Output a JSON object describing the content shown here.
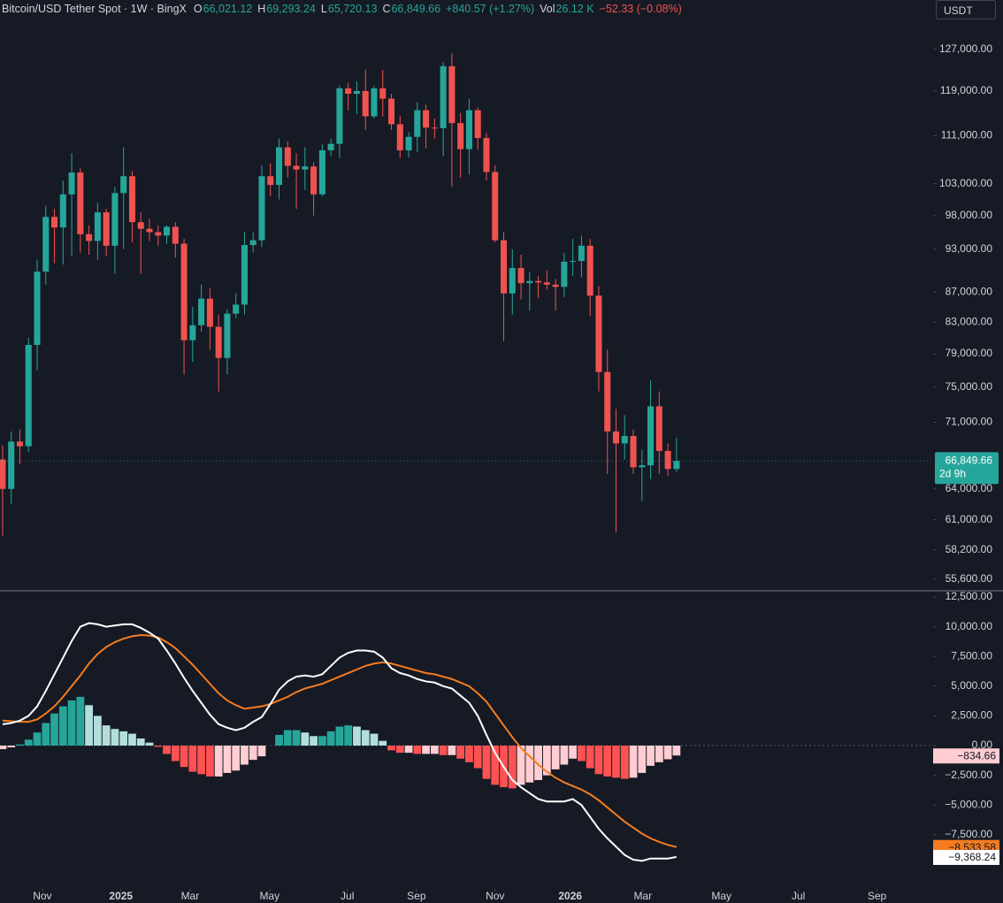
{
  "header": {
    "symbol": "Bitcoin/USD Tether Spot · 1W · BingX",
    "o_key": "O",
    "o": "66,021.12",
    "h_key": "H",
    "h": "69,293.24",
    "l_key": "L",
    "l": "65,720.13",
    "c_key": "C",
    "c": "66,849.66",
    "change": "+840.57 (+1.27%)",
    "vol_key": "Vol",
    "vol": "26.12 K",
    "vol_change": "−52.33 (−0.08%)"
  },
  "currency": "USDT",
  "chart_data": [
    {
      "type": "candlestick",
      "log_scale": true,
      "ylim": [
        54600,
        132500
      ],
      "yticks": [
        {
          "value": 127000,
          "label": "127,000.00"
        },
        {
          "value": 119000,
          "label": "119,000.00"
        },
        {
          "value": 111000,
          "label": "111,000.00"
        },
        {
          "value": 103000,
          "label": "103,000.00"
        },
        {
          "value": 98000,
          "label": "98,000.00"
        },
        {
          "value": 93000,
          "label": "93,000.00"
        },
        {
          "value": 87000,
          "label": "87,000.00"
        },
        {
          "value": 83000,
          "label": "83,000.00"
        },
        {
          "value": 79000,
          "label": "79,000.00"
        },
        {
          "value": 75000,
          "label": "75,000.00"
        },
        {
          "value": 71000,
          "label": "71,000.00"
        },
        {
          "value": 64000,
          "label": "64,000.00"
        },
        {
          "value": 61000,
          "label": "61,000.00"
        },
        {
          "value": 58200,
          "label": "58,200.00"
        },
        {
          "value": 55600,
          "label": "55,600.00"
        }
      ],
      "open": [
        67000,
        64000,
        68900,
        68400,
        80100,
        89800,
        97800,
        96200,
        101300,
        104800,
        95200,
        94200,
        98500,
        93500,
        101500,
        104200,
        97000,
        96000,
        95500,
        95000,
        96300,
        93800,
        80700,
        82600,
        86100,
        82400,
        78500,
        84100,
        85300,
        93600,
        94300,
        104200,
        102800,
        109000,
        105900,
        105300,
        105800,
        101300,
        108500,
        109600,
        119500,
        118500,
        119000,
        114400,
        119500,
        117600,
        113000,
        108500,
        110800,
        115500,
        112400,
        112300,
        123700,
        113200,
        108700,
        115500,
        110600,
        104900,
        94300,
        86800,
        90300,
        88200,
        88500,
        88300,
        88000,
        87700,
        91200,
        91300,
        93500,
        86500,
        76800,
        70000,
        68700,
        69500,
        66200,
        66400,
        72800,
        67900,
        66021.12
      ],
      "high": [
        68500,
        70000,
        70200,
        81000,
        91500,
        99500,
        99000,
        103500,
        108000,
        105500,
        96500,
        100000,
        99000,
        102500,
        109000,
        105000,
        98500,
        97500,
        96500,
        96500,
        97000,
        94500,
        85000,
        88000,
        87500,
        84000,
        84700,
        86800,
        95500,
        95500,
        106000,
        106300,
        110500,
        110000,
        108000,
        109000,
        106500,
        109500,
        110500,
        120000,
        120500,
        120800,
        123000,
        120000,
        123000,
        118500,
        114500,
        111600,
        117000,
        116500,
        114000,
        124500,
        126200,
        115000,
        117500,
        116000,
        111500,
        106000,
        95500,
        93000,
        92200,
        89800,
        89200,
        90000,
        88800,
        92500,
        94500,
        95000,
        94500,
        87800,
        79500,
        72500,
        71800,
        70200,
        68000,
        75800,
        74500,
        68700,
        69293.24
      ],
      "low": [
        59500,
        62500,
        66500,
        67800,
        77000,
        88000,
        91000,
        90800,
        92000,
        92500,
        92200,
        91500,
        92000,
        89500,
        93000,
        94000,
        89500,
        94200,
        93500,
        93800,
        91800,
        76500,
        78000,
        81800,
        79500,
        74500,
        76500,
        83500,
        84000,
        92500,
        93300,
        101000,
        100500,
        104000,
        99000,
        102000,
        98000,
        101000,
        107500,
        107200,
        115500,
        114800,
        112000,
        114000,
        114400,
        112000,
        107200,
        107300,
        108200,
        108800,
        110500,
        107500,
        102500,
        104000,
        104500,
        108600,
        103500,
        94000,
        80600,
        84000,
        86000,
        84500,
        86200,
        87300,
        84500,
        86300,
        89200,
        89000,
        83800,
        74500,
        65500,
        59800,
        67000,
        65500,
        62800,
        65000,
        65500,
        65300,
        65720.13
      ],
      "close": [
        64000,
        68900,
        68400,
        80100,
        89800,
        97800,
        96200,
        101300,
        104800,
        95200,
        94200,
        98500,
        93500,
        101500,
        104200,
        97000,
        96000,
        95500,
        95000,
        96300,
        93800,
        80700,
        82600,
        86100,
        82400,
        78500,
        84100,
        85300,
        93600,
        94300,
        104200,
        102800,
        109000,
        105900,
        105300,
        105800,
        101300,
        108500,
        109600,
        119500,
        118500,
        119000,
        114400,
        119500,
        117600,
        113000,
        108500,
        110800,
        115500,
        112400,
        112300,
        123700,
        113200,
        108700,
        115500,
        110600,
        104900,
        94300,
        86800,
        90300,
        88200,
        88500,
        88300,
        88000,
        87700,
        91200,
        91300,
        93500,
        86500,
        76800,
        70000,
        68700,
        69500,
        66200,
        66400,
        72800,
        67900,
        66021.12,
        66849.66
      ],
      "up_color": "#26a69a",
      "down_color": "#ef5350",
      "last_label": "66,849.66",
      "countdown": "2d 9h"
    },
    {
      "type": "macd",
      "ylim": [
        -12050,
        13020
      ],
      "xlim": [
        -0.3,
        107.7
      ],
      "xticks": [
        {
          "value": 4.6,
          "label": "Nov"
        },
        {
          "value": 13.7,
          "label": "2025"
        },
        {
          "value": 21.7,
          "label": "Mar"
        },
        {
          "value": 30.9,
          "label": "May"
        },
        {
          "value": 39.9,
          "label": "Jul"
        },
        {
          "value": 47.9,
          "label": "Sep"
        },
        {
          "value": 57,
          "label": "Nov"
        },
        {
          "value": 65.7,
          "label": "2026"
        },
        {
          "value": 74.1,
          "label": "Mar"
        },
        {
          "value": 83.2,
          "label": "May"
        },
        {
          "value": 92.1,
          "label": "Jul"
        },
        {
          "value": 101.2,
          "label": "Sep"
        }
      ],
      "yticks": [
        {
          "value": 12500,
          "label": "12,500.00"
        },
        {
          "value": 10000,
          "label": "10,000.00"
        },
        {
          "value": 7500,
          "label": "7,500.00"
        },
        {
          "value": 5000,
          "label": "5,000.00"
        },
        {
          "value": 2500,
          "label": "2,500.00"
        },
        {
          "value": 0,
          "label": "0.00"
        },
        {
          "value": -2500,
          "label": "−2,500.00"
        },
        {
          "value": -5000,
          "label": "−5,000.00"
        },
        {
          "value": -7500,
          "label": "−7,500.00"
        }
      ],
      "macd": {
        "color": "#ffffff",
        "value_label": "−9,368.24",
        "values": [
          1800,
          1900,
          2100,
          2500,
          3300,
          4600,
          6000,
          7400,
          8800,
          10000,
          10300,
          10200,
          10000,
          10100,
          10200,
          10200,
          9900,
          9500,
          9000,
          8000,
          6900,
          5700,
          4600,
          3600,
          2600,
          1800,
          1500,
          1300,
          1500,
          2000,
          2400,
          3500,
          4700,
          5400,
          5800,
          5900,
          5800,
          6000,
          6700,
          7400,
          7800,
          8000,
          8000,
          7900,
          7400,
          6500,
          6100,
          5900,
          5600,
          5400,
          5300,
          5000,
          4800,
          4200,
          3600,
          2500,
          900,
          -600,
          -1800,
          -2900,
          -3500,
          -4000,
          -4500,
          -4700,
          -4700,
          -4700,
          -4500,
          -5000,
          -6000,
          -7000,
          -7800,
          -8500,
          -9200,
          -9600,
          -9700,
          -9500,
          -9500,
          -9500,
          -9368.24
        ]
      },
      "signal": {
        "color": "#f57c1f",
        "value_label": "−8,533.58",
        "values": [
          2100,
          2050,
          2000,
          2000,
          2200,
          2700,
          3300,
          4100,
          5000,
          5900,
          6900,
          7700,
          8300,
          8700,
          9000,
          9200,
          9300,
          9250,
          9100,
          8700,
          8200,
          7500,
          6800,
          6000,
          5200,
          4400,
          3800,
          3400,
          3100,
          3200,
          3300,
          3500,
          3800,
          4100,
          4500,
          4800,
          5000,
          5200,
          5500,
          5800,
          6100,
          6400,
          6700,
          6900,
          7000,
          6900,
          6700,
          6500,
          6300,
          6100,
          6000,
          5800,
          5600,
          5300,
          5000,
          4400,
          3700,
          2700,
          1700,
          700,
          -200,
          -900,
          -1600,
          -2200,
          -2700,
          -3100,
          -3400,
          -3700,
          -4100,
          -4600,
          -5200,
          -5800,
          -6400,
          -6900,
          -7400,
          -7800,
          -8100,
          -8350,
          -8533.58
        ]
      },
      "histogram": {
        "value_label": "−834.66",
        "colors": {
          "pos_grow": "#26a69a",
          "pos_fall": "#b2dfdb",
          "neg_grow": "#ff5252",
          "neg_fall": "#ffcdd2"
        },
        "values": [
          -300,
          -150,
          100,
          500,
          1100,
          1900,
          2700,
          3300,
          3800,
          4100,
          3400,
          2500,
          1700,
          1400,
          1200,
          1000,
          600,
          250,
          -100,
          -700,
          -1300,
          -1800,
          -2200,
          -2400,
          -2600,
          -2600,
          -2300,
          -2100,
          -1600,
          -1200,
          -900,
          0,
          900,
          1300,
          1300,
          1100,
          800,
          800,
          1200,
          1600,
          1700,
          1600,
          1300,
          1000,
          400,
          -400,
          -600,
          -600,
          -700,
          -700,
          -700,
          -800,
          -800,
          -1100,
          -1400,
          -1900,
          -2800,
          -3300,
          -3500,
          -3600,
          -3300,
          -3100,
          -2900,
          -2500,
          -2000,
          -1600,
          -1100,
          -1300,
          -1900,
          -2400,
          -2600,
          -2700,
          -2800,
          -2700,
          -2300,
          -1700,
          -1400,
          -1150,
          -834.66
        ]
      }
    }
  ]
}
